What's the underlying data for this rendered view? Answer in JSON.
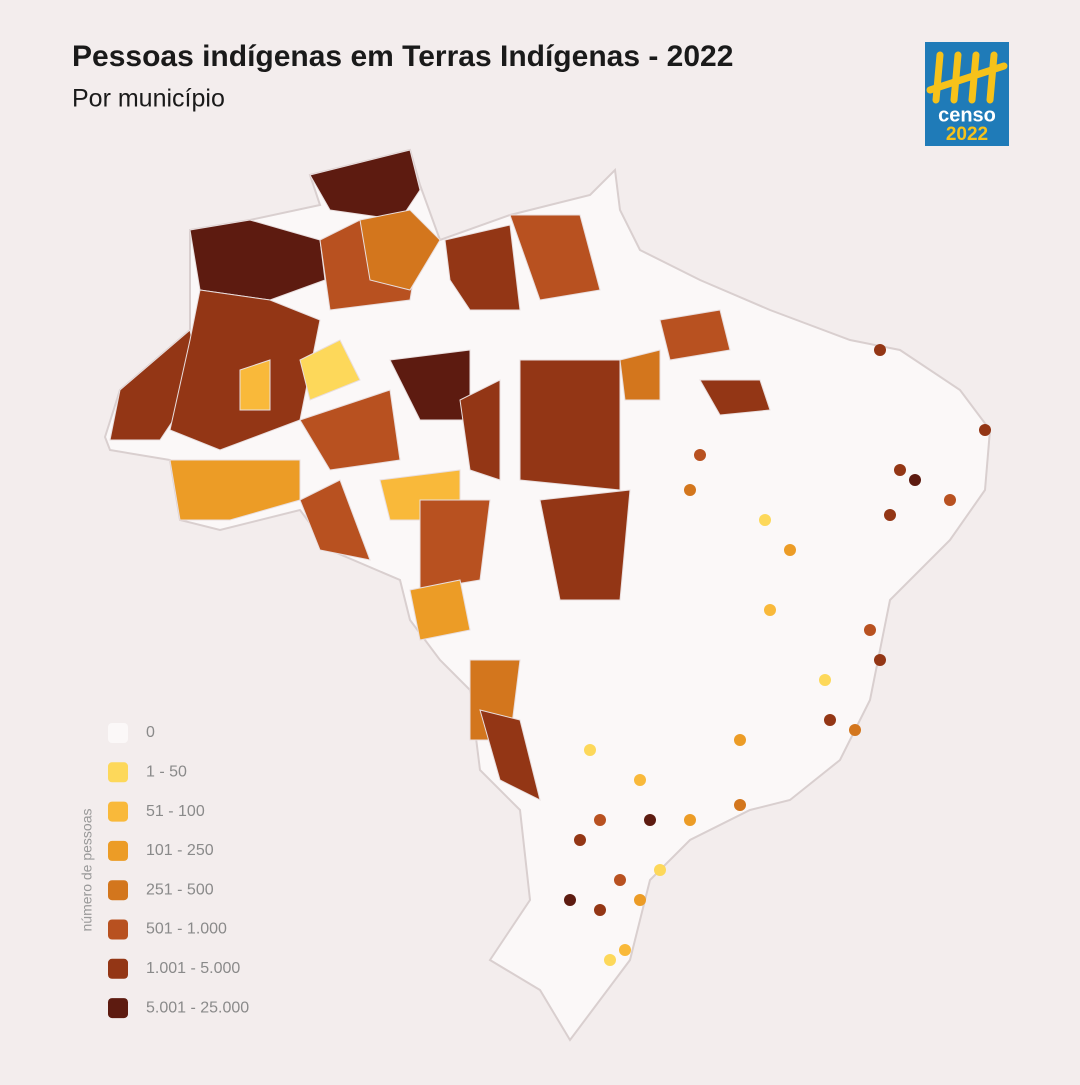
{
  "header": {
    "title": "Pessoas indígenas em Terras Indígenas - 2022",
    "subtitle": "Por município"
  },
  "logo": {
    "line1": "censo",
    "line2": "2022"
  },
  "legend": {
    "title": "número de pessoas",
    "items": [
      {
        "label": "0",
        "color": "#fbf8f8"
      },
      {
        "label": "1 - 50",
        "color": "#fdd85a"
      },
      {
        "label": "51 - 100",
        "color": "#f9b93a"
      },
      {
        "label": "101 - 250",
        "color": "#ec9c26"
      },
      {
        "label": "251 - 500",
        "color": "#d3761d"
      },
      {
        "label": "501 - 1.000",
        "color": "#b85120"
      },
      {
        "label": "1.001 - 5.000",
        "color": "#933615"
      },
      {
        "label": "5.001 - 25.000",
        "color": "#5d1b10"
      }
    ]
  }
}
